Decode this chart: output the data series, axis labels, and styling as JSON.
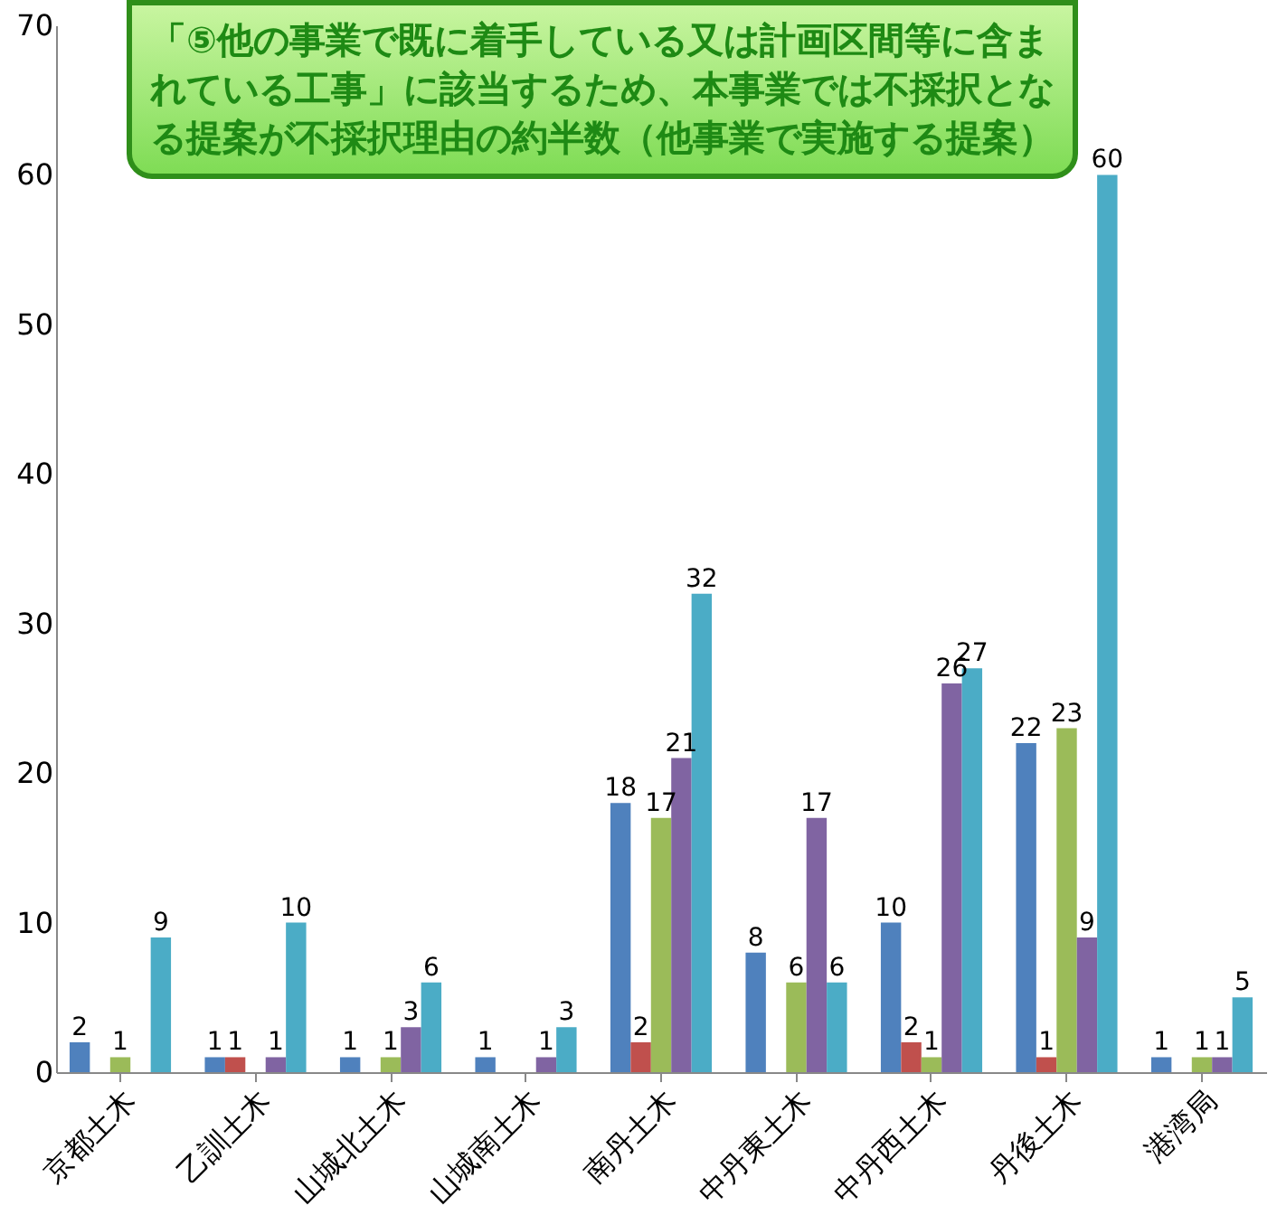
{
  "chart_data": {
    "type": "bar",
    "categories": [
      "京都土木",
      "乙訓土木",
      "山城北土木",
      "山城南土木",
      "南丹土木",
      "中丹東土木",
      "中丹西土木",
      "丹後土木",
      "港湾局"
    ],
    "series": [
      {
        "color": "#4f81bd",
        "values": [
          2,
          1,
          1,
          1,
          18,
          8,
          10,
          22,
          1
        ]
      },
      {
        "color": "#c0504d",
        "values": [
          null,
          1,
          null,
          null,
          2,
          null,
          2,
          1,
          null
        ]
      },
      {
        "color": "#9bbb59",
        "values": [
          1,
          null,
          1,
          null,
          17,
          6,
          1,
          23,
          1
        ]
      },
      {
        "color": "#8064a2",
        "values": [
          null,
          1,
          3,
          1,
          21,
          17,
          26,
          9,
          1
        ]
      },
      {
        "color": "#4bacc6",
        "values": [
          9,
          10,
          6,
          3,
          32,
          6,
          27,
          60,
          5
        ]
      }
    ],
    "ylim": [
      0,
      70
    ],
    "yticks": [
      0,
      10,
      20,
      30,
      40,
      50,
      60,
      70
    ],
    "grid": false,
    "legend": false,
    "data_labels": true,
    "annotations": [
      "「⑤他の事業で既に着手している又は計画区間等に含まれている工事」に該当するため、本事業では不採択となる提案が不採択理由の約半数（他事業で実施する提案）"
    ]
  }
}
